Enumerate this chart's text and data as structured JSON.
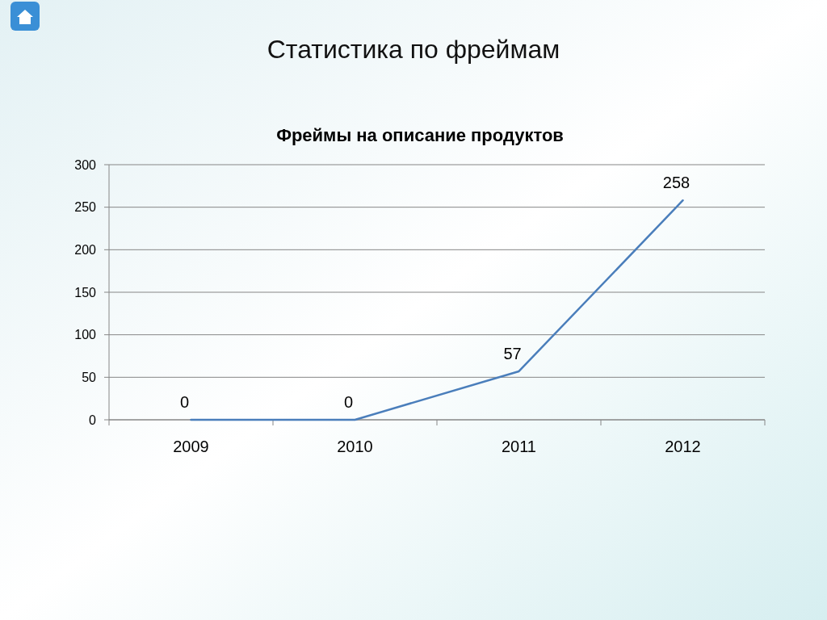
{
  "chart_data": {
    "type": "line",
    "title": "Статистика по фреймам",
    "subtitle": "Фреймы на описание продуктов",
    "categories": [
      "2009",
      "2010",
      "2011",
      "2012"
    ],
    "series": [
      {
        "color": "#4a7ebb",
        "values": [
          0,
          0,
          57,
          258
        ]
      }
    ],
    "ylim": [
      0,
      300
    ],
    "yticks": [
      0,
      50,
      100,
      150,
      200,
      250,
      300
    ],
    "grid": "y",
    "marker": "none",
    "line_style": "solid",
    "data_labels": true
  }
}
